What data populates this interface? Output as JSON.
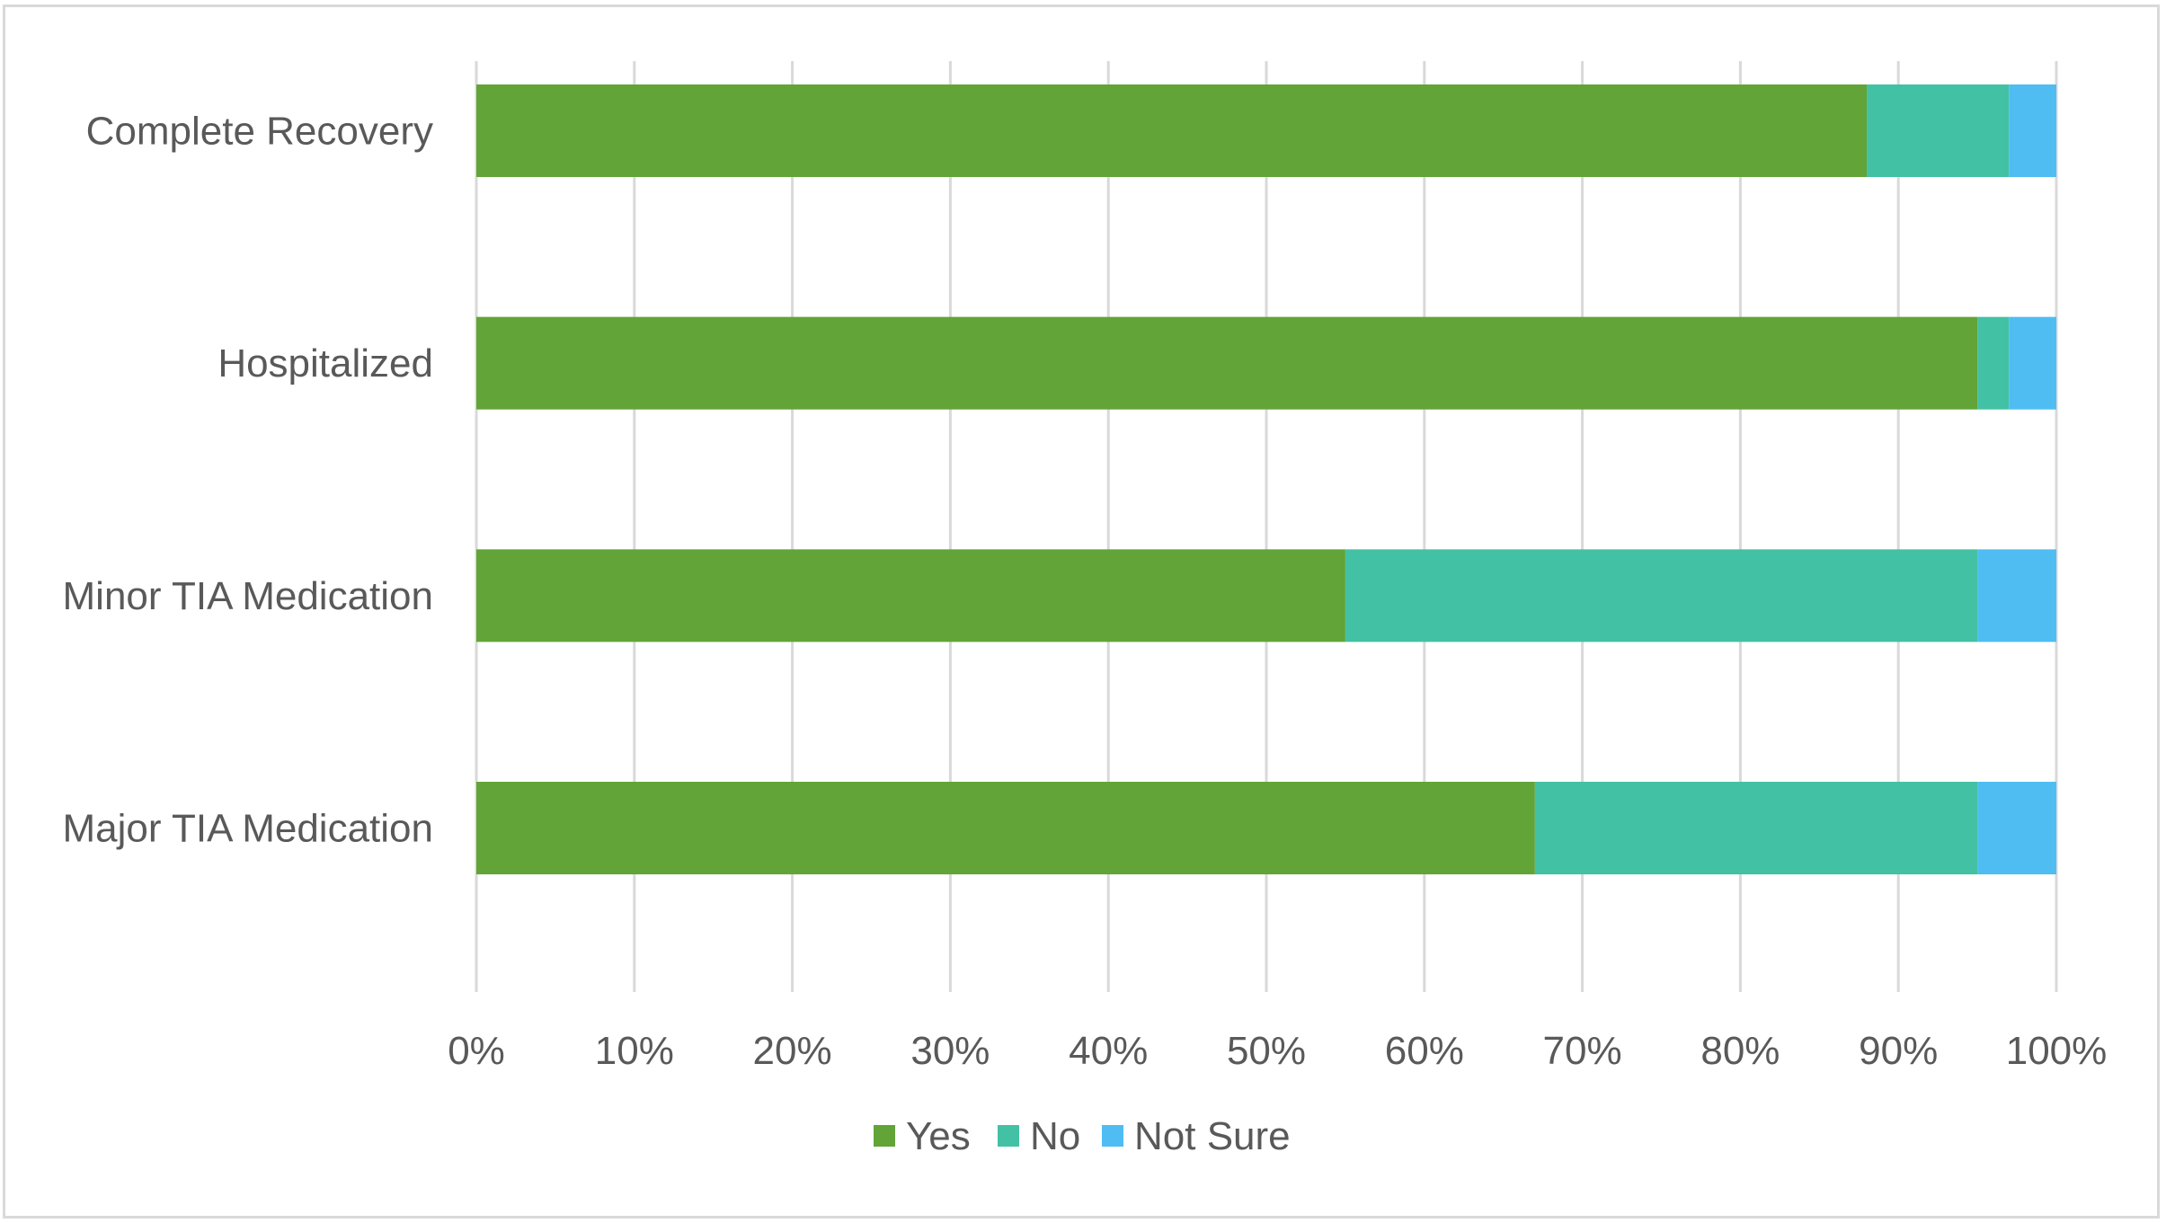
{
  "chart_data": {
    "type": "bar",
    "orientation": "horizontal",
    "stacked": "percent",
    "categories": [
      "Complete Recovery",
      "Hospitalized",
      "Minor TIA Medication",
      "Major TIA Medication"
    ],
    "series": [
      {
        "name": "Yes",
        "color": "#62a437",
        "values": [
          88,
          95,
          55,
          67
        ]
      },
      {
        "name": "No",
        "color": "#43c1a4",
        "values": [
          9,
          2,
          40,
          28
        ]
      },
      {
        "name": "Not Sure",
        "color": "#4fbdf2",
        "values": [
          3,
          3,
          5,
          5
        ]
      }
    ],
    "xlim": [
      0,
      100
    ],
    "x_ticks": [
      "0%",
      "10%",
      "20%",
      "30%",
      "40%",
      "50%",
      "60%",
      "70%",
      "80%",
      "90%",
      "100%"
    ],
    "grid": "vertical",
    "legend": "bottom",
    "title": "",
    "xlabel": "",
    "ylabel": ""
  }
}
